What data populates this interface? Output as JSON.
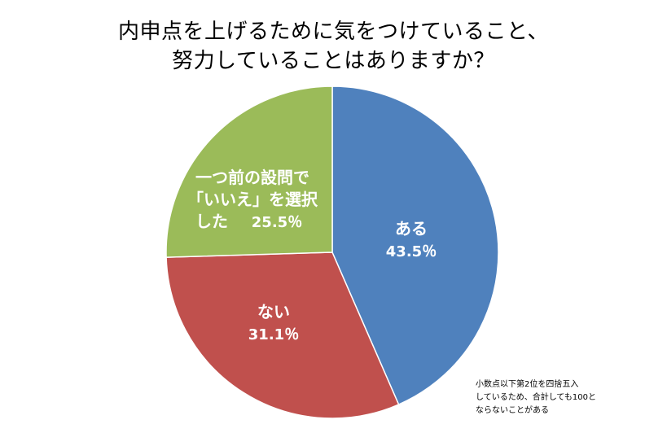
{
  "title": {
    "line1": "内申点を上げるために気をつけていること、",
    "line2": "努力していることはありますか？"
  },
  "chart_data": {
    "type": "pie",
    "start_angle_deg": 0,
    "direction": "clockwise",
    "slices": [
      {
        "lines": [
          "ある"
        ],
        "value_label": "43.5％",
        "value": 43.5,
        "color": "#4f81bd"
      },
      {
        "lines": [
          "ない"
        ],
        "value_label": "31.1％",
        "value": 31.1,
        "color": "#c0504d"
      },
      {
        "lines": [
          "一つ前の設問で",
          "「いいえ」を選択",
          "した"
        ],
        "value_label": "25.5％",
        "value": 25.5,
        "color": "#9bbb59"
      }
    ],
    "legend": "none"
  },
  "note": {
    "line1": "小数点以下第2位を四捨五入",
    "line2": "しているため、合計しても100と",
    "line3": "ならないことがある"
  }
}
